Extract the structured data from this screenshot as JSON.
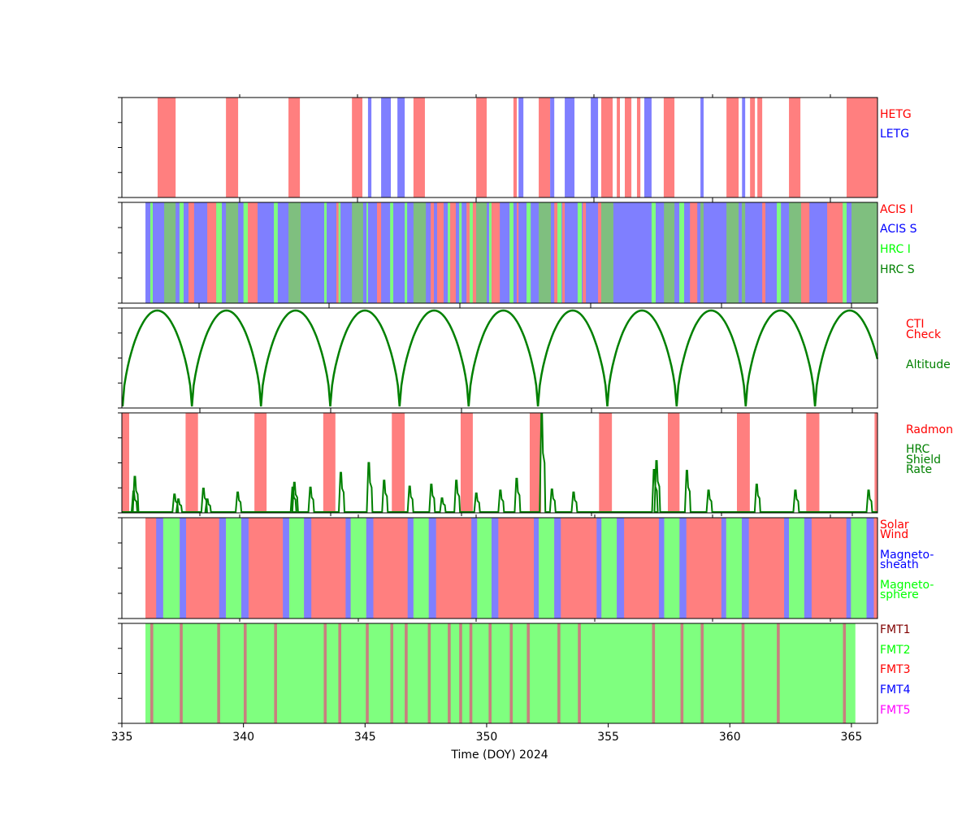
{
  "chart_data": {
    "type": "timeline",
    "xlabel": "Time (DOY) 2024",
    "xlim": [
      335,
      366.07
    ],
    "xticks": [
      "335",
      "340",
      "345",
      "350",
      "355",
      "360",
      "365"
    ],
    "colors": {
      "red": "#ff7f7f",
      "blue": "#7f7fff",
      "lime": "#7fff7f",
      "olive": "#7fbf7f",
      "fmtline": "#c87f7f",
      "line": "#008000"
    },
    "grating": {
      "legend": [
        {
          "label": "HETG",
          "color": "#ff0000"
        },
        {
          "label": "LETG",
          "color": "#0000ff"
        }
      ],
      "HETG": [
        [
          336.47,
          337.21
        ],
        [
          339.28,
          339.78
        ],
        [
          341.85,
          342.32
        ],
        [
          344.46,
          344.89
        ],
        [
          346.99,
          347.46
        ],
        [
          349.57,
          350.0
        ],
        [
          351.1,
          351.24
        ],
        [
          352.14,
          352.61
        ],
        [
          354.71,
          355.18
        ],
        [
          355.35,
          355.48
        ],
        [
          355.68,
          355.95
        ],
        [
          356.18,
          356.32
        ],
        [
          357.28,
          357.72
        ],
        [
          359.86,
          360.36
        ],
        [
          360.83,
          361.03
        ],
        [
          361.13,
          361.33
        ],
        [
          362.43,
          362.9
        ],
        [
          364.8,
          366.07
        ]
      ],
      "LETG": [
        [
          345.12,
          345.26
        ],
        [
          345.66,
          346.06
        ],
        [
          346.33,
          346.63
        ],
        [
          351.31,
          351.51
        ],
        [
          352.61,
          352.78
        ],
        [
          353.21,
          353.61
        ],
        [
          354.28,
          354.58
        ],
        [
          356.48,
          356.78
        ],
        [
          358.79,
          358.92
        ],
        [
          360.5,
          360.63
        ]
      ]
    },
    "instrument": {
      "legend": [
        {
          "label": "ACIS I",
          "color": "#ff0000"
        },
        {
          "label": "ACIS S",
          "color": "#0000ff"
        },
        {
          "label": "HRC I",
          "color": "#00ff00"
        },
        {
          "label": "HRC S",
          "color": "#008000"
        }
      ],
      "base": [
        335.97,
        366.07,
        "ACIS S"
      ],
      "bands": [
        [
          336.17,
          336.27,
          "HRC I"
        ],
        [
          336.74,
          337.21,
          "HRC S"
        ],
        [
          337.37,
          337.54,
          "HRC I"
        ],
        [
          337.74,
          337.97,
          "ACIS I"
        ],
        [
          338.51,
          338.88,
          "ACIS I"
        ],
        [
          338.88,
          339.11,
          "HRC I"
        ],
        [
          339.28,
          339.78,
          "HRC S"
        ],
        [
          340.0,
          340.18,
          "HRC I"
        ],
        [
          340.18,
          340.58,
          "ACIS I"
        ],
        [
          341.25,
          341.41,
          "HRC I"
        ],
        [
          341.85,
          342.35,
          "HRC S"
        ],
        [
          343.32,
          343.42,
          "HRC I"
        ],
        [
          343.82,
          343.91,
          "ACIS I"
        ],
        [
          343.91,
          343.99,
          "HRC I"
        ],
        [
          344.46,
          344.92,
          "HRC S"
        ],
        [
          345.06,
          345.12,
          "HRC I"
        ],
        [
          345.49,
          345.66,
          "ACIS I"
        ],
        [
          346.03,
          346.16,
          "HRC I"
        ],
        [
          346.63,
          346.73,
          "HRC I"
        ],
        [
          346.99,
          347.5,
          "HRC S"
        ],
        [
          347.7,
          347.83,
          "ACIS I"
        ],
        [
          347.96,
          348.23,
          "ACIS I"
        ],
        [
          348.4,
          348.5,
          "HRC I"
        ],
        [
          348.5,
          348.73,
          "ACIS I"
        ],
        [
          348.87,
          348.97,
          "HRC I"
        ],
        [
          349.17,
          349.3,
          "ACIS I"
        ],
        [
          349.3,
          349.43,
          "HRC I"
        ],
        [
          349.43,
          349.57,
          "ACIS I"
        ],
        [
          349.57,
          350.0,
          "HRC S"
        ],
        [
          350.1,
          350.2,
          "HRC I"
        ],
        [
          350.2,
          350.54,
          "ACIS I"
        ],
        [
          350.94,
          351.1,
          "HRC I"
        ],
        [
          351.24,
          351.31,
          "ACIS I"
        ],
        [
          351.64,
          351.81,
          "HRC I"
        ],
        [
          352.14,
          352.64,
          "HRC S"
        ],
        [
          352.78,
          352.91,
          "ACIS I"
        ],
        [
          352.91,
          353.08,
          "HRC I"
        ],
        [
          353.11,
          353.21,
          "ACIS I"
        ],
        [
          353.74,
          353.91,
          "HRC I"
        ],
        [
          353.95,
          354.08,
          "ACIS I"
        ],
        [
          354.58,
          354.71,
          "ACIS I"
        ],
        [
          354.71,
          355.21,
          "HRC S"
        ],
        [
          356.78,
          356.95,
          "HRC I"
        ],
        [
          357.29,
          357.72,
          "HRC S"
        ],
        [
          357.92,
          358.12,
          "HRC I"
        ],
        [
          358.36,
          358.66,
          "ACIS I"
        ],
        [
          358.79,
          358.92,
          "HRC S"
        ],
        [
          359.86,
          360.36,
          "HRC S"
        ],
        [
          360.49,
          360.63,
          "HRC S"
        ],
        [
          361.33,
          361.46,
          "ACIS I"
        ],
        [
          361.93,
          362.1,
          "HRC I"
        ],
        [
          362.43,
          362.93,
          "HRC S"
        ],
        [
          362.93,
          363.27,
          "ACIS I"
        ],
        [
          364.0,
          364.64,
          "ACIS I"
        ],
        [
          364.64,
          364.8,
          "HRC I"
        ],
        [
          365.0,
          366.07,
          "HRC S"
        ]
      ]
    },
    "altitude": {
      "legend": [
        {
          "label": "CTI",
          "color": "#ff0000"
        },
        {
          "label": "Check",
          "color": "#ff0000"
        },
        {
          "label": "Altitude",
          "color": "#008000"
        }
      ],
      "perigees": [
        335.03,
        337.88,
        340.72,
        343.57,
        346.42,
        349.26,
        352.11,
        354.96,
        357.81,
        360.65,
        363.5,
        366.35
      ]
    },
    "radiation": {
      "legend": [
        {
          "label": "Radmon",
          "color": "#ff0000"
        },
        {
          "label": "HRC",
          "color": "#008000"
        },
        {
          "label": "Shield",
          "color": "#008000"
        },
        {
          "label": "Rate",
          "color": "#008000"
        }
      ],
      "radmon": [
        [
          335.0,
          335.3
        ],
        [
          337.62,
          338.13
        ],
        [
          340.45,
          340.95
        ],
        [
          343.28,
          343.78
        ],
        [
          346.1,
          346.63
        ],
        [
          348.93,
          349.43
        ],
        [
          351.77,
          352.24
        ],
        [
          354.62,
          355.15
        ],
        [
          357.45,
          357.93
        ],
        [
          360.29,
          360.82
        ],
        [
          363.14,
          363.68
        ],
        [
          365.95,
          366.07
        ]
      ],
      "shield_rate_peaks": [
        [
          335.5,
          0.21
        ],
        [
          335.55,
          0.36
        ],
        [
          337.18,
          0.18
        ],
        [
          337.34,
          0.13
        ],
        [
          338.37,
          0.24
        ],
        [
          338.53,
          0.13
        ],
        [
          339.78,
          0.2
        ],
        [
          342.04,
          0.25
        ],
        [
          342.11,
          0.3
        ],
        [
          342.77,
          0.25
        ],
        [
          344.02,
          0.4
        ],
        [
          345.17,
          0.5
        ],
        [
          345.8,
          0.32
        ],
        [
          346.85,
          0.26
        ],
        [
          347.74,
          0.28
        ],
        [
          348.18,
          0.14
        ],
        [
          348.77,
          0.32
        ],
        [
          349.59,
          0.19
        ],
        [
          350.58,
          0.22
        ],
        [
          351.25,
          0.34
        ],
        [
          352.28,
          1.0
        ],
        [
          352.7,
          0.23
        ],
        [
          353.59,
          0.2
        ],
        [
          356.9,
          0.43
        ],
        [
          357.0,
          0.52
        ],
        [
          358.25,
          0.42
        ],
        [
          359.14,
          0.22
        ],
        [
          361.12,
          0.28
        ],
        [
          362.71,
          0.22
        ],
        [
          365.72,
          0.22
        ]
      ]
    },
    "environment": {
      "legend": [
        {
          "label": "Solar",
          "color": "#ff0000"
        },
        {
          "label": "Wind",
          "color": "#ff0000"
        },
        {
          "label": "Magneto-",
          "color": "#0000ff"
        },
        {
          "label": "sheath",
          "color": "#0000ff"
        },
        {
          "label": "Magneto-",
          "color": "#00ff00"
        },
        {
          "label": "sphere",
          "color": "#00ff00"
        }
      ],
      "base": [
        335.97,
        366.07,
        "Solar Wind"
      ],
      "bands": [
        [
          336.41,
          336.7,
          "Magnetosheath"
        ],
        [
          336.7,
          337.38,
          "Magnetosphere"
        ],
        [
          337.38,
          337.64,
          "Magnetosheath"
        ],
        [
          339.0,
          339.28,
          "Magnetosheath"
        ],
        [
          339.28,
          339.91,
          "Magnetosphere"
        ],
        [
          339.91,
          340.21,
          "Magnetosheath"
        ],
        [
          341.62,
          341.88,
          "Magnetosheath"
        ],
        [
          341.88,
          342.49,
          "Magnetosphere"
        ],
        [
          342.49,
          342.79,
          "Magnetosheath"
        ],
        [
          344.2,
          344.41,
          "Magnetosheath"
        ],
        [
          344.41,
          345.05,
          "Magnetosphere"
        ],
        [
          345.05,
          345.34,
          "Magnetosheath"
        ],
        [
          346.75,
          346.99,
          "Magnetosheath"
        ],
        [
          346.99,
          347.62,
          "Magnetosphere"
        ],
        [
          347.62,
          347.92,
          "Magnetosheath"
        ],
        [
          349.37,
          349.61,
          "Magnetosheath"
        ],
        [
          349.61,
          350.2,
          "Magnetosphere"
        ],
        [
          350.2,
          350.48,
          "Magnetosheath"
        ],
        [
          351.94,
          352.14,
          "Magnetosheath"
        ],
        [
          352.14,
          352.78,
          "Magnetosphere"
        ],
        [
          352.78,
          353.05,
          "Magnetosheath"
        ],
        [
          354.52,
          354.72,
          "Magnetosheath"
        ],
        [
          354.72,
          355.35,
          "Magnetosphere"
        ],
        [
          355.35,
          355.65,
          "Magnetosheath"
        ],
        [
          357.08,
          357.3,
          "Magnetosheath"
        ],
        [
          357.3,
          357.93,
          "Magnetosphere"
        ],
        [
          357.93,
          358.21,
          "Magnetosheath"
        ],
        [
          359.65,
          359.85,
          "Magnetosheath"
        ],
        [
          359.85,
          360.49,
          "Magnetosphere"
        ],
        [
          360.49,
          360.78,
          "Magnetosheath"
        ],
        [
          362.23,
          362.43,
          "Magnetosheath"
        ],
        [
          362.43,
          363.06,
          "Magnetosphere"
        ],
        [
          363.06,
          363.36,
          "Magnetosheath"
        ],
        [
          364.79,
          364.98,
          "Magnetosheath"
        ],
        [
          364.98,
          365.62,
          "Magnetosphere"
        ],
        [
          365.62,
          365.92,
          "Magnetosheath"
        ]
      ]
    },
    "format": {
      "legend": [
        {
          "label": "FMT1",
          "color": "#800000"
        },
        {
          "label": "FMT2",
          "color": "#00ff00"
        },
        {
          "label": "FMT3",
          "color": "#ff0000"
        },
        {
          "label": "FMT4",
          "color": "#0000ff"
        },
        {
          "label": "FMT5",
          "color": "#ff00ff"
        }
      ],
      "fmt2": [
        335.97,
        365.16
      ],
      "fmt1_marks": [
        336.23,
        337.44,
        338.98,
        340.07,
        341.32,
        343.36,
        343.96,
        345.09,
        346.1,
        346.69,
        347.64,
        348.46,
        348.93,
        349.35,
        350.14,
        351.01,
        351.71,
        352.97,
        353.81,
        356.86,
        358.03,
        358.86,
        360.54,
        361.99,
        364.71
      ]
    }
  }
}
